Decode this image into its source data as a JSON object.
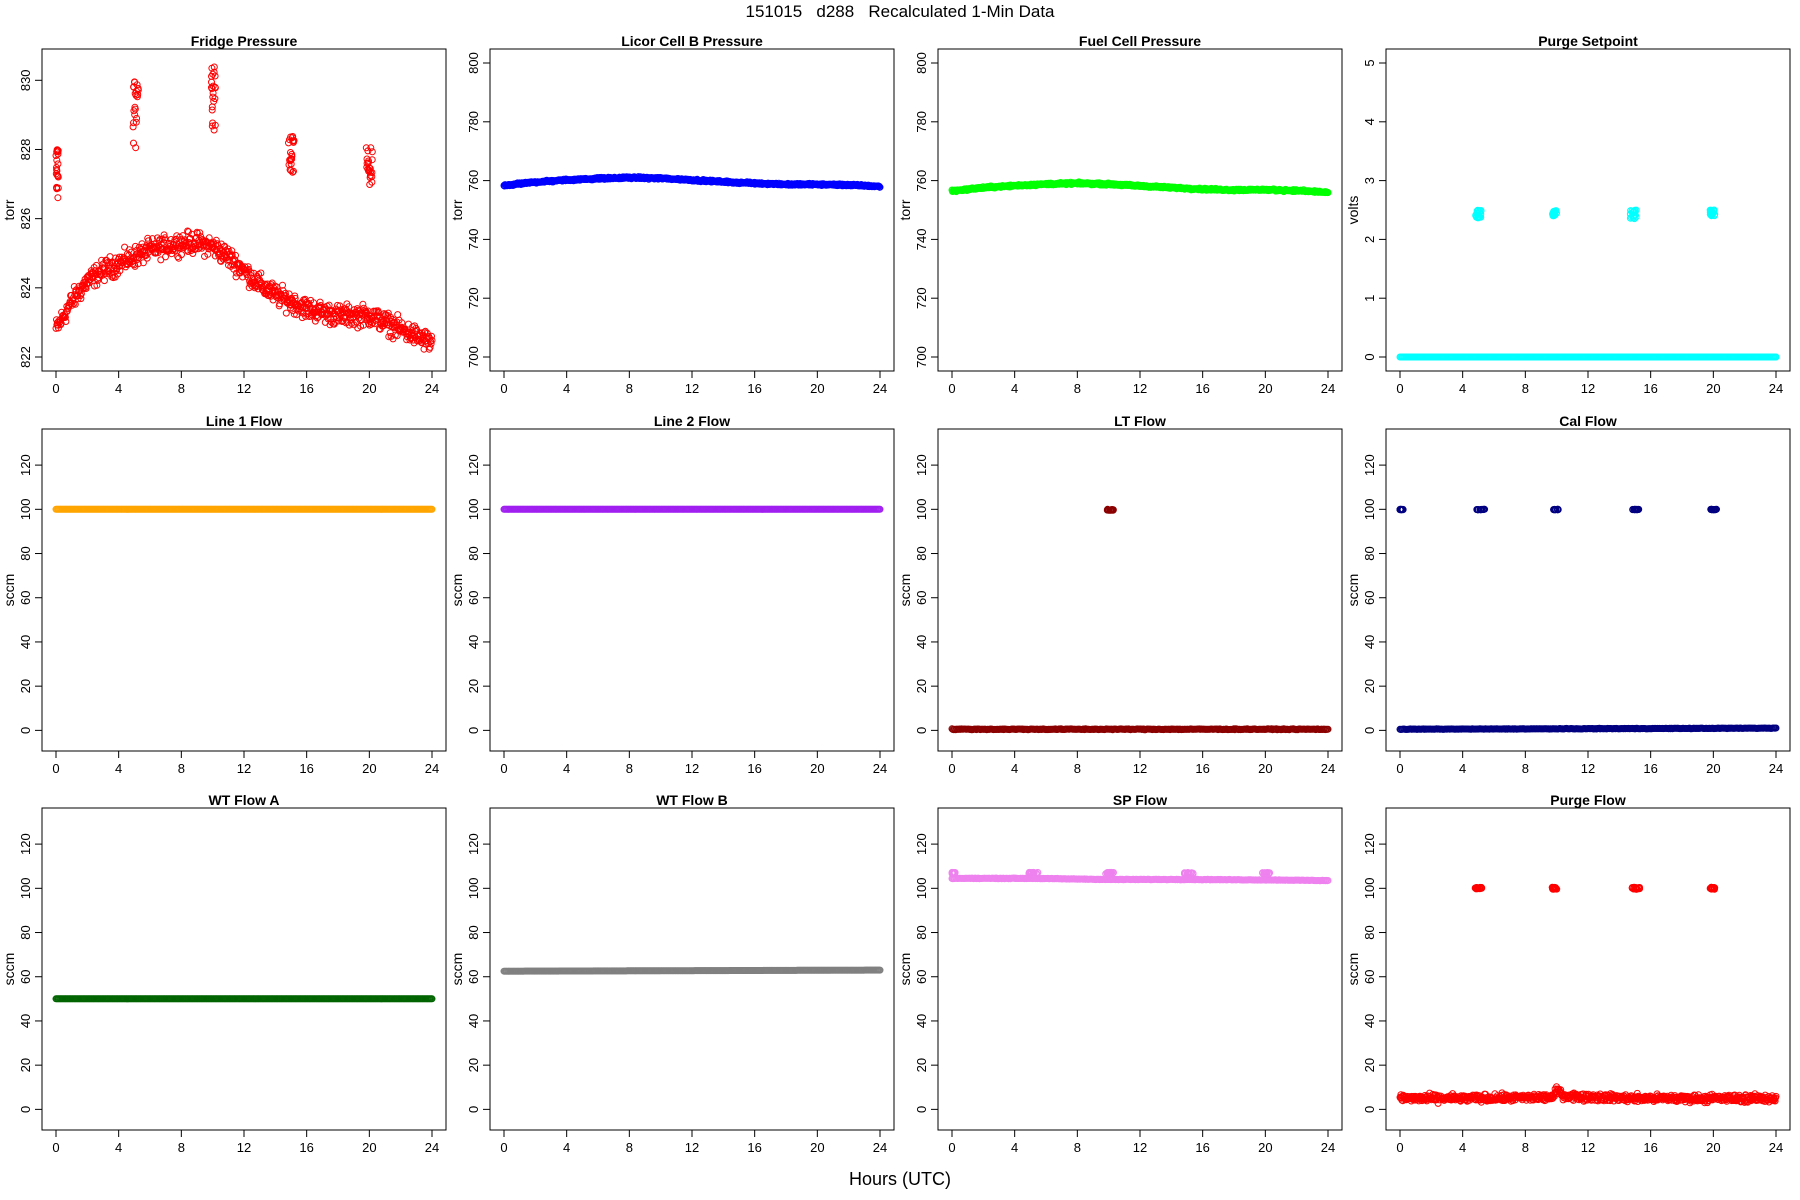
{
  "figure": {
    "title": "151015   d288   Recalculated 1-Min Data",
    "xlabel": "Hours (UTC)"
  },
  "chart_data": [
    {
      "type": "scatter",
      "title": "Fridge Pressure",
      "ylabel": "torr",
      "xlim": [
        0,
        24
      ],
      "ylim": [
        822,
        830.5
      ],
      "xticks": [
        0,
        4,
        8,
        12,
        16,
        20,
        24
      ],
      "yticks": [
        822,
        824,
        826,
        828,
        830
      ],
      "color": "#ff0000",
      "marker": "open-circle",
      "series": [
        {
          "kind": "trend",
          "points": [
            [
              0,
              822.8
            ],
            [
              1,
              823.6
            ],
            [
              2,
              824.2
            ],
            [
              3,
              824.5
            ],
            [
              4,
              824.7
            ],
            [
              5,
              824.9
            ],
            [
              6,
              825.1
            ],
            [
              7,
              825.2
            ],
            [
              8,
              825.3
            ],
            [
              9,
              825.3
            ],
            [
              10,
              825.2
            ],
            [
              11,
              824.9
            ],
            [
              12,
              824.5
            ],
            [
              13,
              824.1
            ],
            [
              14,
              823.8
            ],
            [
              15,
              823.6
            ],
            [
              16,
              823.4
            ],
            [
              17,
              823.3
            ],
            [
              18,
              823.2
            ],
            [
              19,
              823.2
            ],
            [
              20,
              823.2
            ],
            [
              21,
              823.0
            ],
            [
              22,
              822.8
            ],
            [
              23,
              822.6
            ],
            [
              24,
              822.4
            ]
          ],
          "spread": 0.45
        },
        {
          "kind": "cluster",
          "x": [
            0,
            0.15
          ],
          "y": [
            826.5,
            828.0
          ]
        },
        {
          "kind": "cluster",
          "x": [
            4.9,
            5.3
          ],
          "y": [
            828.0,
            830.0
          ]
        },
        {
          "kind": "cluster",
          "x": [
            9.9,
            10.2
          ],
          "y": [
            828.5,
            830.5
          ]
        },
        {
          "kind": "cluster",
          "x": [
            14.8,
            15.2
          ],
          "y": [
            827.3,
            828.4
          ]
        },
        {
          "kind": "cluster",
          "x": [
            19.8,
            20.2
          ],
          "y": [
            826.9,
            828.1
          ]
        }
      ]
    },
    {
      "type": "scatter",
      "title": "Licor Cell B Pressure",
      "ylabel": "torr",
      "xlim": [
        0,
        24
      ],
      "ylim": [
        700,
        800
      ],
      "xticks": [
        0,
        4,
        8,
        12,
        16,
        20,
        24
      ],
      "yticks": [
        700,
        720,
        740,
        760,
        780,
        800
      ],
      "color": "#0000ff",
      "marker": "open-circle",
      "series": [
        {
          "kind": "trend",
          "points": [
            [
              0,
              758.3
            ],
            [
              2,
              759.5
            ],
            [
              4,
              760.2
            ],
            [
              6,
              760.7
            ],
            [
              8,
              761.0
            ],
            [
              10,
              760.8
            ],
            [
              12,
              760.2
            ],
            [
              14,
              759.6
            ],
            [
              16,
              759.1
            ],
            [
              18,
              758.7
            ],
            [
              20,
              758.7
            ],
            [
              22,
              758.5
            ],
            [
              24,
              758.0
            ]
          ],
          "spread": 0.5
        }
      ]
    },
    {
      "type": "scatter",
      "title": "Fuel Cell Pressure",
      "ylabel": "torr",
      "xlim": [
        0,
        24
      ],
      "ylim": [
        700,
        800
      ],
      "xticks": [
        0,
        4,
        8,
        12,
        16,
        20,
        24
      ],
      "yticks": [
        700,
        720,
        740,
        760,
        780,
        800
      ],
      "color": "#00ff00",
      "marker": "open-circle",
      "series": [
        {
          "kind": "trend",
          "points": [
            [
              0,
              756.5
            ],
            [
              2,
              757.6
            ],
            [
              4,
              758.3
            ],
            [
              6,
              758.8
            ],
            [
              8,
              759.1
            ],
            [
              10,
              758.8
            ],
            [
              12,
              758.2
            ],
            [
              14,
              757.6
            ],
            [
              16,
              757.1
            ],
            [
              18,
              756.8
            ],
            [
              20,
              756.9
            ],
            [
              22,
              756.6
            ],
            [
              24,
              756.0
            ]
          ],
          "spread": 0.5
        }
      ]
    },
    {
      "type": "scatter",
      "title": "Purge Setpoint",
      "ylabel": "volts",
      "xlim": [
        0,
        24
      ],
      "ylim": [
        0,
        5
      ],
      "xticks": [
        0,
        4,
        8,
        12,
        16,
        20,
        24
      ],
      "yticks": [
        0,
        1,
        2,
        3,
        4,
        5
      ],
      "color": "#00ffff",
      "marker": "open-circle",
      "series": [
        {
          "kind": "trend",
          "points": [
            [
              0,
              0
            ],
            [
              24,
              0
            ]
          ],
          "spread": 0.0
        },
        {
          "kind": "cluster",
          "x": [
            4.8,
            5.2
          ],
          "y": [
            2.35,
            2.5
          ]
        },
        {
          "kind": "cluster",
          "x": [
            9.7,
            10.0
          ],
          "y": [
            2.4,
            2.5
          ]
        },
        {
          "kind": "cluster",
          "x": [
            14.7,
            15.1
          ],
          "y": [
            2.35,
            2.5
          ]
        },
        {
          "kind": "cluster",
          "x": [
            19.8,
            20.1
          ],
          "y": [
            2.4,
            2.5
          ]
        }
      ]
    },
    {
      "type": "scatter",
      "title": "Line 1 Flow",
      "ylabel": "sccm",
      "xlim": [
        0,
        24
      ],
      "ylim": [
        -3,
        130
      ],
      "xticks": [
        0,
        4,
        8,
        12,
        16,
        20,
        24
      ],
      "yticks": [
        0,
        20,
        40,
        60,
        80,
        100,
        120
      ],
      "color": "#ffa500",
      "marker": "open-circle",
      "series": [
        {
          "kind": "trend",
          "points": [
            [
              0,
              100
            ],
            [
              24,
              100
            ]
          ],
          "spread": 0.0
        }
      ]
    },
    {
      "type": "scatter",
      "title": "Line 2 Flow",
      "ylabel": "sccm",
      "xlim": [
        0,
        24
      ],
      "ylim": [
        -3,
        130
      ],
      "xticks": [
        0,
        4,
        8,
        12,
        16,
        20,
        24
      ],
      "yticks": [
        0,
        20,
        40,
        60,
        80,
        100,
        120
      ],
      "color": "#a020f0",
      "marker": "open-circle",
      "series": [
        {
          "kind": "trend",
          "points": [
            [
              0,
              100
            ],
            [
              24,
              100
            ]
          ],
          "spread": 0.0
        }
      ]
    },
    {
      "type": "scatter",
      "title": "LT Flow",
      "ylabel": "sccm",
      "xlim": [
        0,
        24
      ],
      "ylim": [
        -3,
        130
      ],
      "xticks": [
        0,
        4,
        8,
        12,
        16,
        20,
        24
      ],
      "yticks": [
        0,
        20,
        40,
        60,
        80,
        100,
        120
      ],
      "color": "#8b0000",
      "marker": "open-circle",
      "series": [
        {
          "kind": "trend",
          "points": [
            [
              0,
              0.5
            ],
            [
              24,
              0.5
            ]
          ],
          "spread": 0.3
        },
        {
          "kind": "cluster",
          "x": [
            9.9,
            10.3
          ],
          "y": [
            99.5,
            100
          ]
        }
      ]
    },
    {
      "type": "scatter",
      "title": "Cal Flow",
      "ylabel": "sccm",
      "xlim": [
        0,
        24
      ],
      "ylim": [
        -3,
        130
      ],
      "xticks": [
        0,
        4,
        8,
        12,
        16,
        20,
        24
      ],
      "yticks": [
        0,
        20,
        40,
        60,
        80,
        100,
        120
      ],
      "color": "#000080",
      "marker": "open-circle",
      "series": [
        {
          "kind": "trend",
          "points": [
            [
              0,
              0.5
            ],
            [
              24,
              1.0
            ]
          ],
          "spread": 0.2
        },
        {
          "kind": "cluster",
          "x": [
            0.0,
            0.2
          ],
          "y": [
            99.8,
            100
          ]
        },
        {
          "kind": "cluster",
          "x": [
            4.9,
            5.4
          ],
          "y": [
            99.8,
            100
          ]
        },
        {
          "kind": "cluster",
          "x": [
            9.8,
            10.1
          ],
          "y": [
            99.8,
            100
          ]
        },
        {
          "kind": "cluster",
          "x": [
            14.8,
            15.3
          ],
          "y": [
            99.8,
            100
          ]
        },
        {
          "kind": "cluster",
          "x": [
            19.8,
            20.2
          ],
          "y": [
            99.8,
            100
          ]
        }
      ]
    },
    {
      "type": "scatter",
      "title": "WT Flow A",
      "ylabel": "sccm",
      "xlim": [
        0,
        24
      ],
      "ylim": [
        -3,
        130
      ],
      "xticks": [
        0,
        4,
        8,
        12,
        16,
        20,
        24
      ],
      "yticks": [
        0,
        20,
        40,
        60,
        80,
        100,
        120
      ],
      "color": "#006400",
      "marker": "open-circle",
      "series": [
        {
          "kind": "trend",
          "points": [
            [
              0,
              50
            ],
            [
              24,
              50
            ]
          ],
          "spread": 0.0
        }
      ]
    },
    {
      "type": "scatter",
      "title": "WT Flow B",
      "ylabel": "sccm",
      "xlim": [
        0,
        24
      ],
      "ylim": [
        -3,
        130
      ],
      "xticks": [
        0,
        4,
        8,
        12,
        16,
        20,
        24
      ],
      "yticks": [
        0,
        20,
        40,
        60,
        80,
        100,
        120
      ],
      "color": "#808080",
      "marker": "open-circle",
      "series": [
        {
          "kind": "trend",
          "points": [
            [
              0,
              62.5
            ],
            [
              24,
              63
            ]
          ],
          "spread": 0.0
        }
      ]
    },
    {
      "type": "scatter",
      "title": "SP Flow",
      "ylabel": "sccm",
      "xlim": [
        0,
        24
      ],
      "ylim": [
        -3,
        130
      ],
      "xticks": [
        0,
        4,
        8,
        12,
        16,
        20,
        24
      ],
      "yticks": [
        0,
        20,
        40,
        60,
        80,
        100,
        120
      ],
      "color": "#ee82ee",
      "marker": "open-circle",
      "series": [
        {
          "kind": "trend",
          "points": [
            [
              0,
              104.5
            ],
            [
              5,
              104.5
            ],
            [
              10,
              104
            ],
            [
              15,
              104
            ],
            [
              20,
              103.8
            ],
            [
              24,
              103.5
            ]
          ],
          "spread": 0.2
        },
        {
          "kind": "cluster",
          "x": [
            0.0,
            0.2
          ],
          "y": [
            106.5,
            107.2
          ]
        },
        {
          "kind": "cluster",
          "x": [
            4.9,
            5.5
          ],
          "y": [
            106.5,
            107.2
          ]
        },
        {
          "kind": "cluster",
          "x": [
            9.8,
            10.4
          ],
          "y": [
            106.5,
            107.2
          ]
        },
        {
          "kind": "cluster",
          "x": [
            14.8,
            15.4
          ],
          "y": [
            106.5,
            107.2
          ]
        },
        {
          "kind": "cluster",
          "x": [
            19.8,
            20.3
          ],
          "y": [
            106.5,
            107.2
          ]
        }
      ]
    },
    {
      "type": "scatter",
      "title": "Purge Flow",
      "ylabel": "sccm",
      "xlim": [
        0,
        24
      ],
      "ylim": [
        -3,
        130
      ],
      "xticks": [
        0,
        4,
        8,
        12,
        16,
        20,
        24
      ],
      "yticks": [
        0,
        20,
        40,
        60,
        80,
        100,
        120
      ],
      "color": "#ff0000",
      "marker": "open-circle",
      "series": [
        {
          "kind": "trend",
          "points": [
            [
              0,
              5
            ],
            [
              5,
              5
            ],
            [
              9.8,
              5.5
            ],
            [
              10,
              9
            ],
            [
              10.5,
              6
            ],
            [
              15,
              5
            ],
            [
              20,
              5
            ],
            [
              24,
              5
            ]
          ],
          "spread": 2.5
        },
        {
          "kind": "cluster",
          "x": [
            4.8,
            5.3
          ],
          "y": [
            99.5,
            100.5
          ]
        },
        {
          "kind": "cluster",
          "x": [
            9.7,
            10.0
          ],
          "y": [
            99.5,
            100.5
          ]
        },
        {
          "kind": "cluster",
          "x": [
            14.8,
            15.3
          ],
          "y": [
            99.5,
            100.5
          ]
        },
        {
          "kind": "cluster",
          "x": [
            19.8,
            20.1
          ],
          "y": [
            99.5,
            100.5
          ]
        }
      ]
    }
  ]
}
